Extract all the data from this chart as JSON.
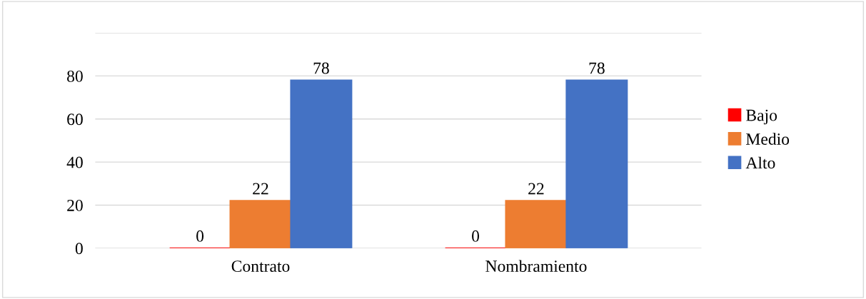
{
  "chart_data": {
    "type": "bar",
    "categories": [
      "Contrato",
      "Nombramiento"
    ],
    "series": [
      {
        "name": "Bajo",
        "color": "#ff0000",
        "values": [
          0,
          0
        ]
      },
      {
        "name": "Medio",
        "color": "#ed7d31",
        "values": [
          22,
          22
        ]
      },
      {
        "name": "Alto",
        "color": "#4472c4",
        "values": [
          78,
          78
        ]
      }
    ],
    "ylim": [
      0,
      100
    ],
    "yticks": [
      0,
      20,
      40,
      60,
      80,
      {
        "value": 100,
        "label": null
      }
    ],
    "grid": "y",
    "legend": "right",
    "data_labels": true
  }
}
